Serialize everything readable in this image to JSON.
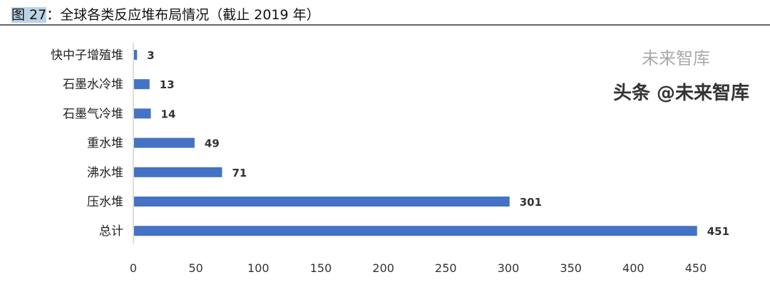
{
  "title": {
    "prefix": "图 27",
    "rest": "：全球各类反应堆布局情况（截止 2019 年）"
  },
  "chart_data": {
    "type": "bar",
    "orientation": "horizontal",
    "categories": [
      "快中子增殖堆",
      "石墨水冷堆",
      "石墨气冷堆",
      "重水堆",
      "沸水堆",
      "压水堆",
      "总计"
    ],
    "values": [
      3,
      13,
      14,
      49,
      71,
      301,
      451
    ],
    "xlim": [
      0,
      450
    ],
    "xticks": [
      0,
      50,
      100,
      150,
      200,
      250,
      300,
      350,
      400,
      450
    ],
    "bar_color": "#4472c4",
    "grid": false,
    "data_labels": true
  },
  "watermark": {
    "top": "未来智库",
    "bottom": "头条 @未来智库"
  }
}
